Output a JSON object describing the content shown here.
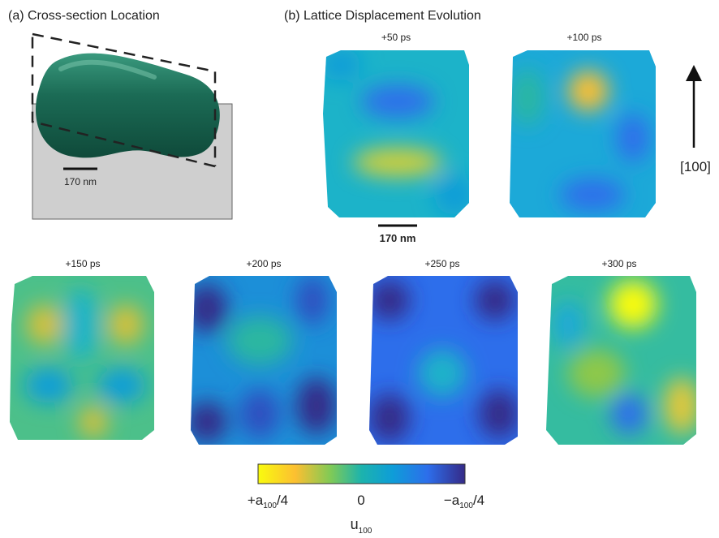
{
  "panel_a": {
    "title": "(a) Cross-section Location",
    "scale_bar": "170 nm"
  },
  "panel_b": {
    "title": "(b) Lattice Displacement Evolution",
    "scale_bar": "170 nm",
    "direction": "[100]",
    "frames": [
      "+50 ps",
      "+100 ps",
      "+150 ps",
      "+200 ps",
      "+250 ps",
      "+300 ps"
    ]
  },
  "colorbar": {
    "left": {
      "base": "+a",
      "sub": "100",
      "rest": "/4"
    },
    "mid": "0",
    "right": {
      "base": "−a",
      "sub": "100",
      "rest": "/4"
    },
    "label": {
      "base": "u",
      "sub": "100"
    }
  }
}
